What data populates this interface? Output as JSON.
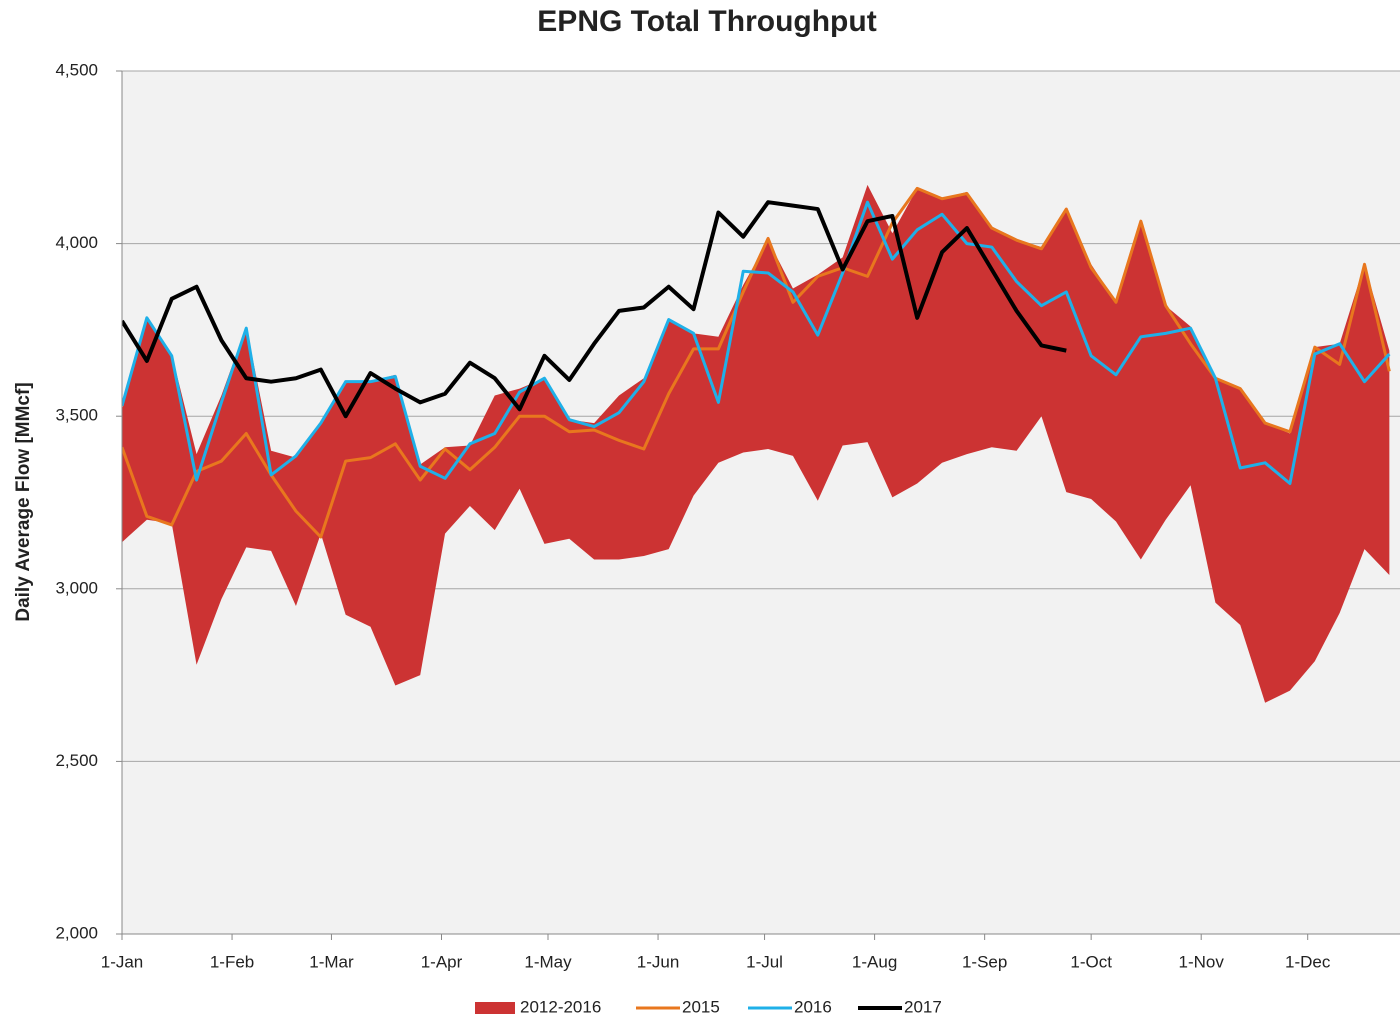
{
  "chart_data": {
    "type": "line",
    "title": "EPNG Total Throughput",
    "y_label": "Daily Average Flow [MMcf]",
    "x": [
      0,
      7,
      14,
      21,
      28,
      35,
      42,
      49,
      56,
      63,
      70,
      77,
      84,
      91,
      98,
      105,
      112,
      119,
      126,
      133,
      140,
      147,
      154,
      161,
      168,
      175,
      182,
      189,
      196,
      203,
      210,
      217,
      224,
      231,
      238,
      245,
      252,
      259,
      266,
      273,
      280,
      287,
      294,
      301,
      308,
      315,
      322,
      329,
      336,
      343,
      350,
      357
    ],
    "xlim": [
      0,
      360
    ],
    "xticks": [
      {
        "value": 0,
        "label": "1-Jan"
      },
      {
        "value": 31,
        "label": "1-Feb"
      },
      {
        "value": 59,
        "label": "1-Mar"
      },
      {
        "value": 90,
        "label": "1-Apr"
      },
      {
        "value": 120,
        "label": "1-May"
      },
      {
        "value": 151,
        "label": "1-Jun"
      },
      {
        "value": 181,
        "label": "1-Jul"
      },
      {
        "value": 212,
        "label": "1-Aug"
      },
      {
        "value": 243,
        "label": "1-Sep"
      },
      {
        "value": 273,
        "label": "1-Oct"
      },
      {
        "value": 304,
        "label": "1-Nov"
      },
      {
        "value": 334,
        "label": "1-Dec"
      }
    ],
    "ylim": [
      2000,
      4500
    ],
    "yticks": [
      {
        "value": 2000,
        "label": "2,000"
      },
      {
        "value": 2500,
        "label": "2,500"
      },
      {
        "value": 3000,
        "label": "3,000"
      },
      {
        "value": 3500,
        "label": "3,500"
      },
      {
        "value": 4000,
        "label": "4,000"
      },
      {
        "value": 4500,
        "label": "4,500"
      }
    ],
    "grid": true,
    "legend": "bottom",
    "band": {
      "name": "2012-2016",
      "color": "#cc3333",
      "high": [
        3520,
        3780,
        3680,
        3390,
        3560,
        3760,
        3400,
        3380,
        3480,
        3600,
        3600,
        3620,
        3360,
        3410,
        3415,
        3560,
        3580,
        3610,
        3490,
        3480,
        3560,
        3610,
        3780,
        3740,
        3730,
        3880,
        4010,
        3870,
        3910,
        3960,
        4170,
        4030,
        4160,
        4130,
        4150,
        4050,
        4010,
        3990,
        4100,
        3940,
        3830,
        4070,
        3820,
        3760,
        3610,
        3580,
        3480,
        3450,
        3700,
        3710,
        3940,
        3690
      ],
      "low": [
        3135,
        3200,
        3190,
        2780,
        2970,
        3120,
        3110,
        2950,
        3160,
        2925,
        2890,
        2720,
        2750,
        3160,
        3240,
        3170,
        3290,
        3130,
        3145,
        3085,
        3085,
        3095,
        3115,
        3270,
        3365,
        3395,
        3405,
        3385,
        3255,
        3415,
        3425,
        3265,
        3305,
        3365,
        3390,
        3410,
        3400,
        3500,
        3280,
        3260,
        3195,
        3085,
        3200,
        3300,
        2960,
        2895,
        2670,
        2705,
        2790,
        2930,
        3115,
        3040
      ]
    },
    "series": [
      {
        "name": "2015",
        "color": "#e8771e",
        "width": 3,
        "values": [
          3410,
          3210,
          3185,
          3340,
          3370,
          3450,
          3330,
          3225,
          3150,
          3370,
          3380,
          3420,
          3315,
          3405,
          3345,
          3410,
          3500,
          3500,
          3455,
          3460,
          3430,
          3405,
          3565,
          3695,
          3695,
          3860,
          4015,
          3830,
          3905,
          3930,
          3905,
          4060,
          4160,
          4130,
          4145,
          4045,
          4010,
          3985,
          4100,
          3930,
          3830,
          4065,
          3820,
          3710,
          3610,
          3580,
          3480,
          3455,
          3700,
          3650,
          3940,
          3630
        ]
      },
      {
        "name": "2016",
        "color": "#1fb0e8",
        "width": 3,
        "values": [
          3530,
          3785,
          3675,
          3315,
          3540,
          3755,
          3330,
          3385,
          3480,
          3600,
          3600,
          3615,
          3355,
          3320,
          3420,
          3450,
          3570,
          3610,
          3490,
          3470,
          3510,
          3600,
          3780,
          3740,
          3540,
          3920,
          3915,
          3860,
          3735,
          3915,
          4120,
          3955,
          4040,
          4085,
          4000,
          3990,
          3890,
          3820,
          3860,
          3675,
          3620,
          3730,
          3740,
          3755,
          3610,
          3350,
          3365,
          3305,
          3680,
          3710,
          3600,
          3680
        ]
      },
      {
        "name": "2017",
        "color": "#000000",
        "width": 4,
        "values": [
          3776,
          3660,
          3840,
          3875,
          3720,
          3610,
          3600,
          3610,
          3635,
          3500,
          3625,
          3580,
          3540,
          3565,
          3655,
          3610,
          3520,
          3675,
          3605,
          3710,
          3805,
          3815,
          3875,
          3810,
          4090,
          4020,
          4120,
          4110,
          4100,
          3925,
          4065,
          4080,
          3785,
          3975,
          4045,
          3925,
          3805,
          3705,
          3690,
          null,
          null,
          null,
          null,
          null,
          null,
          null,
          null,
          null,
          null,
          null,
          null,
          null
        ]
      }
    ]
  }
}
